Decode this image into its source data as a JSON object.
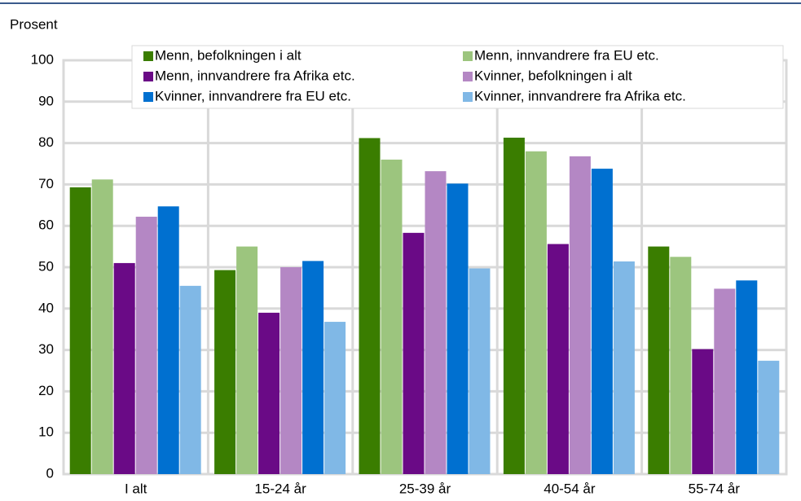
{
  "chart_data": {
    "type": "bar",
    "y_label": "Prosent",
    "categories": [
      "I alt",
      "15-24 år",
      "25-39 år",
      "40-54 år",
      "55-74 år"
    ],
    "series": [
      {
        "name": "Menn, befolkningen i alt",
        "color": "#3a7d00",
        "values": [
          69.3,
          49.3,
          81.2,
          81.3,
          55
        ]
      },
      {
        "name": "Menn, innvandrere fra EU etc.",
        "color": "#9cc57e",
        "values": [
          71.2,
          55,
          76,
          78,
          52.5
        ]
      },
      {
        "name": "Menn, innvandrere fra Afrika etc.",
        "color": "#6a0a86",
        "values": [
          51,
          39,
          58.3,
          55.6,
          30.2
        ]
      },
      {
        "name": "Kvinner, befolkningen i alt",
        "color": "#b487c4",
        "values": [
          62.2,
          50,
          73.2,
          76.8,
          44.8
        ]
      },
      {
        "name": "Kvinner, innvandrere fra EU etc.",
        "color": "#0070d0",
        "values": [
          64.7,
          51.5,
          70.2,
          73.8,
          46.8
        ]
      },
      {
        "name": "Kvinner, innvandrere fra Afrika etc.",
        "color": "#80b8e6",
        "values": [
          45.5,
          36.8,
          49.7,
          51.4,
          27.4
        ]
      }
    ],
    "ylim": [
      0,
      100
    ],
    "yticks": [
      0,
      10,
      20,
      30,
      40,
      50,
      60,
      70,
      80,
      90,
      100
    ],
    "grid": true,
    "legend": "top"
  }
}
